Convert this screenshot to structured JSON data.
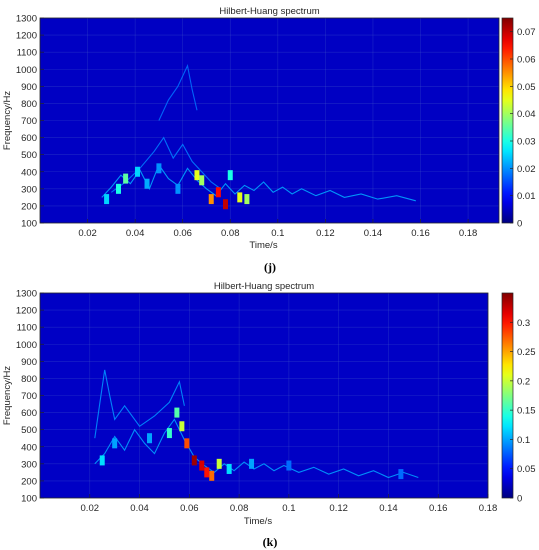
{
  "chart_data": [
    {
      "type": "heatmap",
      "title": "Hilbert-Huang spectrum",
      "xlabel": "Time/s",
      "ylabel": "Frequency/Hz",
      "panel_label": "(j)",
      "xlim": [
        0.0,
        0.193
      ],
      "ylim": [
        100,
        1300
      ],
      "xticks": [
        0.02,
        0.04,
        0.06,
        0.08,
        0.1,
        0.12,
        0.14,
        0.16,
        0.18
      ],
      "yticks": [
        100,
        200,
        300,
        400,
        500,
        600,
        700,
        800,
        900,
        1000,
        1100,
        1200,
        1300
      ],
      "colorbar": {
        "min": 0,
        "max": 0.075,
        "ticks": [
          0,
          0.01,
          0.02,
          0.03,
          0.04,
          0.05,
          0.06,
          0.07
        ]
      },
      "background_level": 0.002,
      "hotspots": [
        {
          "t": 0.028,
          "f": 240,
          "v": 0.025
        },
        {
          "t": 0.033,
          "f": 300,
          "v": 0.03
        },
        {
          "t": 0.036,
          "f": 360,
          "v": 0.035
        },
        {
          "t": 0.041,
          "f": 400,
          "v": 0.025
        },
        {
          "t": 0.045,
          "f": 330,
          "v": 0.022
        },
        {
          "t": 0.05,
          "f": 420,
          "v": 0.02
        },
        {
          "t": 0.058,
          "f": 300,
          "v": 0.02
        },
        {
          "t": 0.066,
          "f": 380,
          "v": 0.045
        },
        {
          "t": 0.068,
          "f": 350,
          "v": 0.04
        },
        {
          "t": 0.072,
          "f": 240,
          "v": 0.055
        },
        {
          "t": 0.075,
          "f": 280,
          "v": 0.065
        },
        {
          "t": 0.078,
          "f": 210,
          "v": 0.07
        },
        {
          "t": 0.08,
          "f": 380,
          "v": 0.03
        },
        {
          "t": 0.084,
          "f": 250,
          "v": 0.045
        },
        {
          "t": 0.087,
          "f": 240,
          "v": 0.04
        }
      ],
      "ridges": [
        {
          "t": [
            0.026,
            0.03,
            0.034,
            0.038,
            0.042,
            0.046,
            0.05,
            0.054,
            0.058,
            0.062,
            0.066,
            0.07,
            0.074,
            0.078,
            0.082,
            0.086,
            0.09,
            0.094,
            0.098,
            0.102,
            0.106,
            0.11,
            0.116,
            0.122,
            0.128,
            0.135,
            0.142,
            0.15,
            0.158
          ],
          "f": [
            250,
            310,
            380,
            330,
            410,
            300,
            440,
            360,
            320,
            420,
            350,
            300,
            260,
            330,
            270,
            320,
            290,
            340,
            280,
            310,
            270,
            300,
            260,
            290,
            250,
            270,
            240,
            260,
            230
          ],
          "v": 0.008
        },
        {
          "t": [
            0.03,
            0.036,
            0.042,
            0.048,
            0.052,
            0.056,
            0.06,
            0.064,
            0.068,
            0.072,
            0.076
          ],
          "f": [
            280,
            340,
            420,
            520,
            600,
            480,
            560,
            460,
            400,
            340,
            300
          ],
          "v": 0.005
        },
        {
          "t": [
            0.05,
            0.054,
            0.058,
            0.062,
            0.064,
            0.066
          ],
          "f": [
            700,
            820,
            900,
            1020,
            880,
            760
          ],
          "v": 0.004
        }
      ]
    },
    {
      "type": "heatmap",
      "title": "Hilbert-Huang spectrum",
      "xlabel": "Time/s",
      "ylabel": "Frequency/Hz",
      "panel_label": "(k)",
      "xlim": [
        0.0,
        0.18
      ],
      "ylim": [
        100,
        1300
      ],
      "xticks": [
        0.02,
        0.04,
        0.06,
        0.08,
        0.1,
        0.12,
        0.14,
        0.16,
        0.18
      ],
      "yticks": [
        100,
        200,
        300,
        400,
        500,
        600,
        700,
        800,
        900,
        1000,
        1100,
        1200,
        1300
      ],
      "colorbar": {
        "min": 0,
        "max": 0.35,
        "ticks": [
          0,
          0.05,
          0.1,
          0.15,
          0.2,
          0.25,
          0.3
        ]
      },
      "background_level": 0.01,
      "hotspots": [
        {
          "t": 0.025,
          "f": 320,
          "v": 0.12
        },
        {
          "t": 0.03,
          "f": 420,
          "v": 0.1
        },
        {
          "t": 0.044,
          "f": 450,
          "v": 0.1
        },
        {
          "t": 0.052,
          "f": 480,
          "v": 0.15
        },
        {
          "t": 0.055,
          "f": 600,
          "v": 0.16
        },
        {
          "t": 0.057,
          "f": 520,
          "v": 0.2
        },
        {
          "t": 0.059,
          "f": 420,
          "v": 0.28
        },
        {
          "t": 0.062,
          "f": 320,
          "v": 0.34
        },
        {
          "t": 0.065,
          "f": 290,
          "v": 0.32
        },
        {
          "t": 0.067,
          "f": 250,
          "v": 0.3
        },
        {
          "t": 0.069,
          "f": 230,
          "v": 0.27
        },
        {
          "t": 0.072,
          "f": 300,
          "v": 0.2
        },
        {
          "t": 0.076,
          "f": 270,
          "v": 0.12
        },
        {
          "t": 0.085,
          "f": 300,
          "v": 0.1
        },
        {
          "t": 0.1,
          "f": 290,
          "v": 0.08
        },
        {
          "t": 0.145,
          "f": 240,
          "v": 0.08
        }
      ],
      "ridges": [
        {
          "t": [
            0.022,
            0.026,
            0.03,
            0.034,
            0.038,
            0.042,
            0.046,
            0.05,
            0.054,
            0.058,
            0.062,
            0.066,
            0.07,
            0.074,
            0.078,
            0.082,
            0.086,
            0.09,
            0.094,
            0.098,
            0.104,
            0.11,
            0.116,
            0.122,
            0.128,
            0.134,
            0.14,
            0.146,
            0.152
          ],
          "f": [
            300,
            360,
            460,
            380,
            500,
            420,
            360,
            480,
            560,
            440,
            340,
            290,
            250,
            300,
            260,
            310,
            270,
            300,
            260,
            290,
            250,
            280,
            240,
            270,
            230,
            260,
            220,
            250,
            220
          ],
          "v": 0.035
        },
        {
          "t": [
            0.022,
            0.024,
            0.026,
            0.028,
            0.03,
            0.034,
            0.04,
            0.046,
            0.052,
            0.056,
            0.058
          ],
          "f": [
            450,
            650,
            850,
            700,
            560,
            640,
            520,
            580,
            660,
            780,
            640
          ],
          "v": 0.03
        }
      ]
    }
  ]
}
